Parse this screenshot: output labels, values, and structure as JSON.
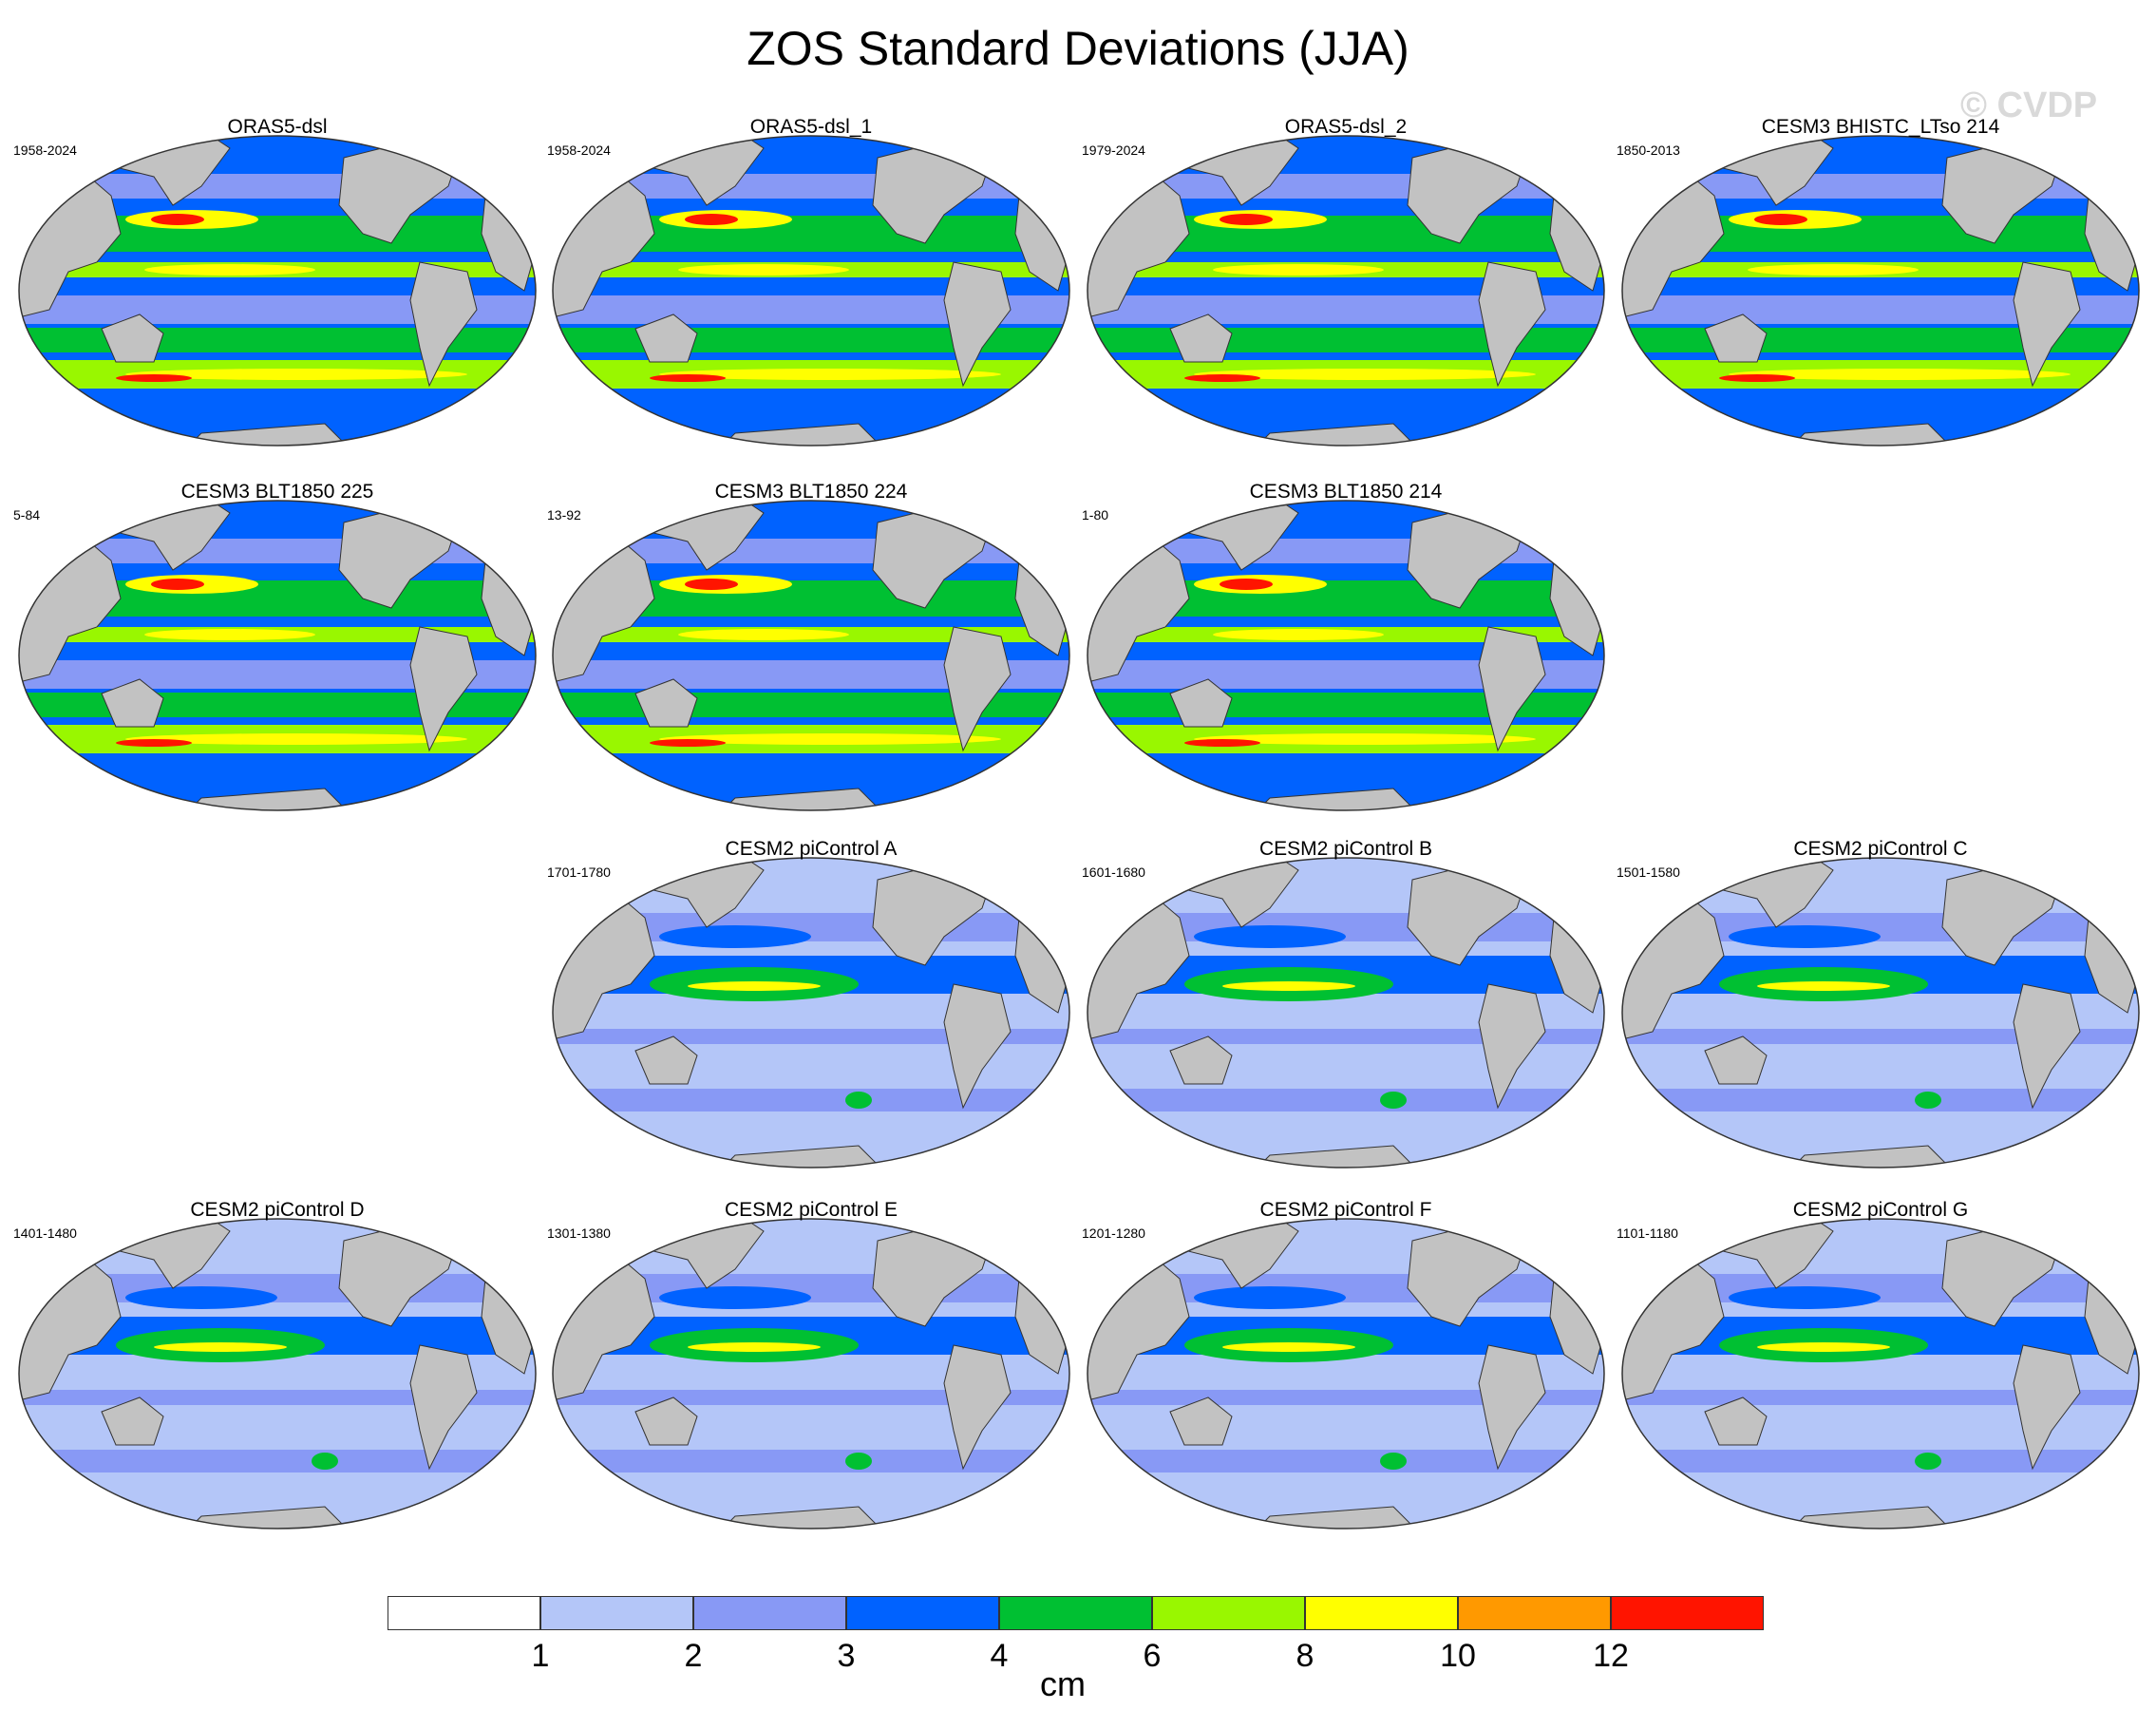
{
  "title": "ZOS Standard Deviations (JJA)",
  "watermark": "© CVDP",
  "panels": [
    {
      "title": "ORAS5-dsl",
      "period": "1958-2024",
      "level": "high",
      "present": true
    },
    {
      "title": "ORAS5-dsl_1",
      "period": "1958-2024",
      "level": "high",
      "present": true
    },
    {
      "title": "ORAS5-dsl_2",
      "period": "1979-2024",
      "level": "high",
      "present": true
    },
    {
      "title": "CESM3 BHISTC_LTso 214",
      "period": "1850-2013",
      "level": "high",
      "present": true
    },
    {
      "title": "CESM3 BLT1850 225",
      "period": "5-84",
      "level": "high",
      "present": true
    },
    {
      "title": "CESM3 BLT1850 224",
      "period": "13-92",
      "level": "high",
      "present": true
    },
    {
      "title": "CESM3 BLT1850 214",
      "period": "1-80",
      "level": "high",
      "present": true
    },
    {
      "present": false
    },
    {
      "present": false
    },
    {
      "title": "CESM2 piControl A",
      "period": "1701-1780",
      "level": "low",
      "present": true
    },
    {
      "title": "CESM2 piControl B",
      "period": "1601-1680",
      "level": "low",
      "present": true
    },
    {
      "title": "CESM2 piControl C",
      "period": "1501-1580",
      "level": "low",
      "present": true
    },
    {
      "title": "CESM2 piControl D",
      "period": "1401-1480",
      "level": "low",
      "present": true
    },
    {
      "title": "CESM2 piControl E",
      "period": "1301-1380",
      "level": "low",
      "present": true
    },
    {
      "title": "CESM2 piControl F",
      "period": "1201-1280",
      "level": "low",
      "present": true
    },
    {
      "title": "CESM2 piControl G",
      "period": "1101-1180",
      "level": "low",
      "present": true
    }
  ],
  "colorbar": {
    "colors": [
      "#ffffff",
      "#b4c6f8",
      "#8899f5",
      "#0062ff",
      "#00c032",
      "#99f700",
      "#ffff00",
      "#ff9900",
      "#ff1400"
    ],
    "labels": [
      "1",
      "2",
      "3",
      "4",
      "6",
      "8",
      "10",
      "12"
    ],
    "units": "cm"
  },
  "colors": {
    "land": "#c2c2c2",
    "outline": "#333333"
  }
}
